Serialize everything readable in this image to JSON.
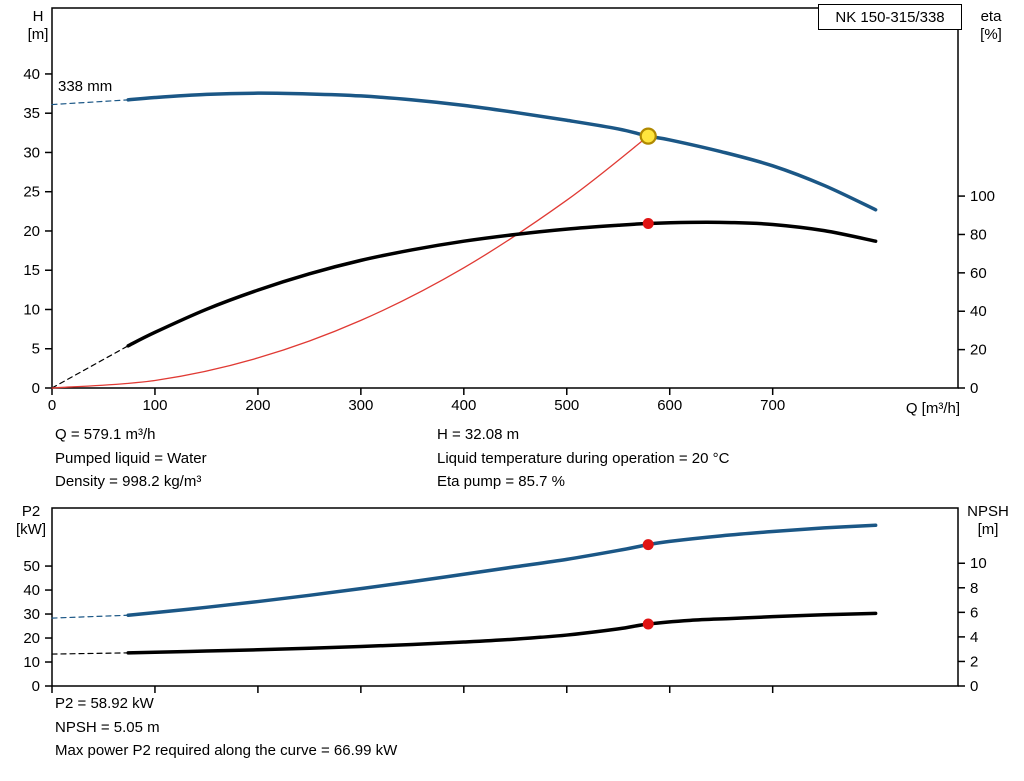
{
  "operating_point_info": {
    "left": [
      "Q = 579.1 m³/h",
      "Pumped liquid = Water",
      "Density = 998.2 kg/m³"
    ],
    "right": [
      "H = 32.08 m",
      "Liquid temperature during operation = 20 °C",
      "Eta pump = 85.7 %"
    ]
  },
  "power_info": [
    "P2 = 58.92 kW",
    "NPSH = 5.05 m",
    "Max power P2 required along the curve = 66.99 kW"
  ],
  "chart_data": [
    {
      "type": "line",
      "name": "qh-eta-chart",
      "title": "NK 150-315/338",
      "curve_label": "338 mm",
      "x_axis": {
        "label": "Q [m³/h]",
        "min": 0,
        "max": 880,
        "ticks": [
          0,
          100,
          200,
          300,
          400,
          500,
          600,
          700
        ],
        "show_tick_labels": true
      },
      "y_left": {
        "label_lines": [
          "H",
          "[m]"
        ],
        "min": 0,
        "max": 48.4,
        "ticks": [
          0,
          5,
          10,
          15,
          20,
          25,
          30,
          35,
          40
        ]
      },
      "y_right": {
        "label_lines": [
          "eta",
          "[%]"
        ],
        "min": 0,
        "max": 198,
        "ticks": [
          0,
          20,
          40,
          60,
          80,
          100
        ]
      },
      "series": [
        {
          "name": "head-curve-dashed-extension",
          "axis": "left",
          "color": "#1b5786",
          "width": 1.2,
          "dash": "5 4",
          "points": [
            [
              0,
              36.1
            ],
            [
              74,
              36.7
            ]
          ]
        },
        {
          "name": "eta-curve-dashed-extension",
          "axis": "right",
          "color": "#000000",
          "width": 1.2,
          "dash": "5 4",
          "points": [
            [
              0,
              0
            ],
            [
              74,
              22
            ]
          ]
        },
        {
          "name": "system-curve",
          "axis": "left",
          "color": "#e03a34",
          "width": 1.3,
          "points": [
            [
              0,
              0
            ],
            [
              100,
              0.96
            ],
            [
              200,
              3.83
            ],
            [
              300,
              8.61
            ],
            [
              400,
              15.31
            ],
            [
              500,
              23.92
            ],
            [
              579.1,
              32.08
            ]
          ]
        },
        {
          "name": "head-curve-338mm",
          "axis": "left",
          "color": "#1b5786",
          "width": 3.5,
          "points": [
            [
              74,
              36.7
            ],
            [
              100,
              37.0
            ],
            [
              150,
              37.4
            ],
            [
              200,
              37.55
            ],
            [
              250,
              37.45
            ],
            [
              300,
              37.2
            ],
            [
              350,
              36.7
            ],
            [
              400,
              36.0
            ],
            [
              450,
              35.1
            ],
            [
              500,
              34.1
            ],
            [
              550,
              33.0
            ],
            [
              579.1,
              32.08
            ],
            [
              600,
              31.6
            ],
            [
              650,
              30.1
            ],
            [
              700,
              28.3
            ],
            [
              750,
              25.8
            ],
            [
              800,
              22.7
            ]
          ]
        },
        {
          "name": "eta-curve",
          "axis": "right",
          "color": "#000000",
          "width": 3.5,
          "points": [
            [
              74,
              22
            ],
            [
              100,
              29
            ],
            [
              150,
              41
            ],
            [
              200,
              51
            ],
            [
              250,
              59.5
            ],
            [
              300,
              66.5
            ],
            [
              350,
              72
            ],
            [
              400,
              76.5
            ],
            [
              450,
              80
            ],
            [
              500,
              82.8
            ],
            [
              550,
              84.8
            ],
            [
              579.1,
              85.7
            ],
            [
              620,
              86.3
            ],
            [
              660,
              86.2
            ],
            [
              700,
              85.2
            ],
            [
              750,
              82
            ],
            [
              800,
              76.5
            ]
          ]
        }
      ],
      "markers": [
        {
          "name": "duty-point",
          "axis": "left",
          "q": 579.1,
          "value": 32.08,
          "r": 7.5,
          "fill": "#ffe53d",
          "stroke": "#b08900",
          "stroke_width": 2.2
        },
        {
          "name": "eta-operating-point",
          "axis": "right",
          "q": 579.1,
          "value": 85.7,
          "r": 5.5,
          "fill": "#e01414",
          "stroke": "none",
          "stroke_width": 0
        }
      ]
    },
    {
      "type": "line",
      "name": "p2-npsh-chart",
      "x_axis": {
        "label": "",
        "min": 0,
        "max": 880,
        "ticks": [
          0,
          100,
          200,
          300,
          400,
          500,
          600,
          700
        ],
        "show_tick_labels": false
      },
      "y_left": {
        "label_lines": [
          "P2",
          "[kW]"
        ],
        "min": 0,
        "max": 74.2,
        "ticks": [
          0,
          10,
          20,
          30,
          40,
          50
        ]
      },
      "y_right": {
        "label_lines": [
          "NPSH",
          "[m]"
        ],
        "min": 0,
        "max": 14.5,
        "ticks": [
          0,
          2,
          4,
          6,
          8,
          10
        ]
      },
      "series": [
        {
          "name": "p2-curve-dashed-extension",
          "axis": "left",
          "color": "#1b5786",
          "width": 1.2,
          "dash": "5 4",
          "points": [
            [
              0,
              28.3
            ],
            [
              74,
              29.5
            ]
          ]
        },
        {
          "name": "npsh-curve-dashed-extension",
          "axis": "right",
          "color": "#000000",
          "width": 1.2,
          "dash": "5 4",
          "points": [
            [
              0,
              2.6
            ],
            [
              74,
              2.7
            ]
          ]
        },
        {
          "name": "p2-curve",
          "axis": "left",
          "color": "#1b5786",
          "width": 3.5,
          "points": [
            [
              74,
              29.5
            ],
            [
              100,
              30.6
            ],
            [
              150,
              32.8
            ],
            [
              200,
              35.2
            ],
            [
              250,
              37.8
            ],
            [
              300,
              40.6
            ],
            [
              350,
              43.5
            ],
            [
              400,
              46.6
            ],
            [
              450,
              49.7
            ],
            [
              500,
              52.8
            ],
            [
              550,
              56.5
            ],
            [
              579.1,
              58.92
            ],
            [
              600,
              60.3
            ],
            [
              650,
              62.6
            ],
            [
              700,
              64.4
            ],
            [
              750,
              65.9
            ],
            [
              800,
              67.0
            ]
          ]
        },
        {
          "name": "npsh-curve",
          "axis": "right",
          "color": "#000000",
          "width": 3.5,
          "points": [
            [
              74,
              2.7
            ],
            [
              100,
              2.75
            ],
            [
              150,
              2.85
            ],
            [
              200,
              2.95
            ],
            [
              250,
              3.08
            ],
            [
              300,
              3.22
            ],
            [
              350,
              3.38
            ],
            [
              400,
              3.58
            ],
            [
              450,
              3.82
            ],
            [
              500,
              4.15
            ],
            [
              550,
              4.65
            ],
            [
              579.1,
              5.05
            ],
            [
              620,
              5.35
            ],
            [
              660,
              5.5
            ],
            [
              700,
              5.65
            ],
            [
              750,
              5.8
            ],
            [
              800,
              5.92
            ]
          ]
        }
      ],
      "markers": [
        {
          "name": "p2-operating-point",
          "axis": "left",
          "q": 579.1,
          "value": 58.92,
          "r": 5.5,
          "fill": "#e01414",
          "stroke": "none",
          "stroke_width": 0
        },
        {
          "name": "npsh-operating-point",
          "axis": "right",
          "q": 579.1,
          "value": 5.05,
          "r": 5.5,
          "fill": "#e01414",
          "stroke": "none",
          "stroke_width": 0
        }
      ]
    }
  ]
}
